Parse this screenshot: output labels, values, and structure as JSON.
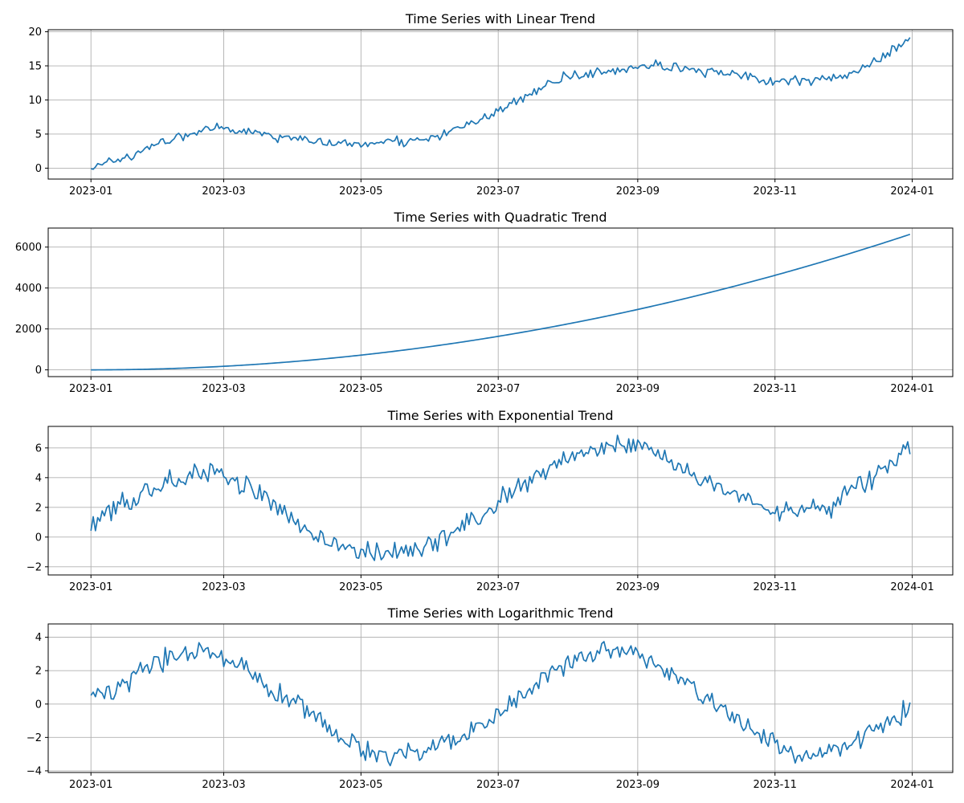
{
  "chart_data": [
    {
      "type": "line",
      "title": "Time Series with Linear Trend",
      "x_ticks": [
        "2023-01",
        "2023-03",
        "2023-05",
        "2023-07",
        "2023-09",
        "2023-11",
        "2024-01"
      ],
      "y_ticks": [
        "0",
        "5",
        "10",
        "15",
        "20"
      ],
      "xlim": [
        "2022-12-13",
        "2024-01-19"
      ],
      "ylim": [
        -1.6,
        20.3
      ],
      "grid": true,
      "color": "#1f77b4",
      "series": [
        {
          "x": [
            "2023-01-01",
            "2023-01-11",
            "2023-01-21",
            "2023-01-31",
            "2023-02-10",
            "2023-02-20",
            "2023-03-02",
            "2023-03-12",
            "2023-03-22",
            "2023-04-01",
            "2023-04-11",
            "2023-04-21",
            "2023-05-01",
            "2023-05-11",
            "2023-05-21",
            "2023-05-31",
            "2023-06-10",
            "2023-06-20",
            "2023-06-30",
            "2023-07-10",
            "2023-07-20",
            "2023-07-30",
            "2023-08-09",
            "2023-08-19",
            "2023-08-29",
            "2023-09-08",
            "2023-09-18",
            "2023-09-28",
            "2023-10-08",
            "2023-10-18",
            "2023-10-28",
            "2023-11-07",
            "2023-11-17",
            "2023-11-27",
            "2023-12-07",
            "2023-12-17",
            "2023-12-31"
          ],
          "y": [
            0.3,
            1.1,
            2.1,
            3.8,
            4.6,
            5.5,
            5.9,
            5.4,
            4.8,
            4.4,
            4.0,
            3.7,
            3.5,
            3.8,
            3.9,
            4.3,
            5.4,
            6.6,
            8.1,
            10.0,
            11.8,
            13.2,
            13.8,
            14.4,
            14.9,
            15.0,
            14.6,
            14.3,
            13.8,
            13.4,
            12.9,
            12.6,
            12.8,
            13.4,
            14.1,
            15.8,
            19.2
          ]
        }
      ]
    },
    {
      "type": "line",
      "title": "Time Series with Quadratic Trend",
      "x_ticks": [
        "2023-01",
        "2023-03",
        "2023-05",
        "2023-07",
        "2023-09",
        "2023-11",
        "2024-01"
      ],
      "y_ticks": [
        "0",
        "2000",
        "4000",
        "6000"
      ],
      "xlim": [
        "2022-12-13",
        "2024-01-19"
      ],
      "ylim": [
        -330,
        6930
      ],
      "grid": true,
      "color": "#1f77b4",
      "series": [
        {
          "x": [
            "2023-01-01",
            "2023-01-31",
            "2023-03-02",
            "2023-04-01",
            "2023-05-01",
            "2023-05-31",
            "2023-06-30",
            "2023-07-30",
            "2023-08-29",
            "2023-09-28",
            "2023-10-28",
            "2023-11-27",
            "2023-12-27",
            "2023-12-31"
          ],
          "y": [
            0,
            45,
            180,
            405,
            720,
            1125,
            1620,
            2205,
            2880,
            3645,
            4500,
            5445,
            6480,
            6623
          ]
        }
      ]
    },
    {
      "type": "line",
      "title": "Time Series with Exponential Trend",
      "x_ticks": [
        "2023-01",
        "2023-03",
        "2023-05",
        "2023-07",
        "2023-09",
        "2023-11",
        "2024-01"
      ],
      "y_ticks": [
        "−2",
        "0",
        "2",
        "4",
        "6"
      ],
      "xlim": [
        "2022-12-13",
        "2024-01-19"
      ],
      "ylim": [
        -2.55,
        7.45
      ],
      "grid": true,
      "color": "#1f77b4",
      "series": [
        {
          "x": [
            "2023-01-01",
            "2023-01-11",
            "2023-01-21",
            "2023-01-31",
            "2023-02-10",
            "2023-02-20",
            "2023-03-02",
            "2023-03-12",
            "2023-03-22",
            "2023-04-01",
            "2023-04-11",
            "2023-04-21",
            "2023-05-01",
            "2023-05-11",
            "2023-05-21",
            "2023-05-31",
            "2023-06-10",
            "2023-06-20",
            "2023-06-30",
            "2023-07-10",
            "2023-07-20",
            "2023-07-30",
            "2023-08-09",
            "2023-08-19",
            "2023-08-29",
            "2023-09-08",
            "2023-09-18",
            "2023-09-28",
            "2023-10-08",
            "2023-10-18",
            "2023-10-28",
            "2023-11-07",
            "2023-11-17",
            "2023-11-27",
            "2023-12-07",
            "2023-12-17",
            "2023-12-31"
          ],
          "y": [
            0.8,
            1.8,
            2.6,
            3.5,
            4.0,
            4.4,
            4.0,
            3.4,
            2.2,
            1.1,
            0.2,
            -0.6,
            -0.9,
            -1.0,
            -0.9,
            -0.5,
            0.2,
            1.2,
            2.3,
            3.3,
            4.3,
            5.2,
            5.8,
            6.2,
            6.0,
            5.6,
            4.8,
            4.0,
            3.3,
            2.6,
            2.0,
            1.9,
            2.0,
            2.2,
            3.3,
            4.2,
            6.2
          ]
        }
      ]
    },
    {
      "type": "line",
      "title": "Time Series with Logarithmic Trend",
      "x_ticks": [
        "2023-01",
        "2023-03",
        "2023-05",
        "2023-07",
        "2023-09",
        "2023-11",
        "2024-01"
      ],
      "y_ticks": [
        "−4",
        "−2",
        "0",
        "2",
        "4"
      ],
      "xlim": [
        "2022-12-13",
        "2024-01-19"
      ],
      "ylim": [
        -4.1,
        4.8
      ],
      "grid": true,
      "color": "#1f77b4",
      "series": [
        {
          "x": [
            "2023-01-01",
            "2023-01-11",
            "2023-01-21",
            "2023-01-31",
            "2023-02-10",
            "2023-02-20",
            "2023-03-02",
            "2023-03-12",
            "2023-03-22",
            "2023-04-01",
            "2023-04-11",
            "2023-04-21",
            "2023-05-01",
            "2023-05-11",
            "2023-05-21",
            "2023-05-31",
            "2023-06-10",
            "2023-06-20",
            "2023-06-30",
            "2023-07-10",
            "2023-07-20",
            "2023-07-30",
            "2023-08-09",
            "2023-08-19",
            "2023-08-29",
            "2023-09-08",
            "2023-09-18",
            "2023-09-28",
            "2023-10-08",
            "2023-10-18",
            "2023-10-28",
            "2023-11-07",
            "2023-11-17",
            "2023-11-27",
            "2023-12-07",
            "2023-12-17",
            "2023-12-31"
          ],
          "y": [
            0.3,
            0.8,
            1.8,
            2.5,
            3.0,
            3.1,
            2.6,
            2.0,
            1.0,
            0.2,
            -0.7,
            -1.9,
            -2.7,
            -3.0,
            -3.0,
            -2.6,
            -2.2,
            -1.5,
            -0.6,
            0.3,
            1.4,
            2.4,
            3.0,
            3.3,
            3.0,
            2.5,
            1.7,
            0.8,
            -0.2,
            -1.1,
            -2.1,
            -2.8,
            -3.0,
            -2.8,
            -2.2,
            -1.2,
            -0.2
          ]
        }
      ]
    }
  ]
}
